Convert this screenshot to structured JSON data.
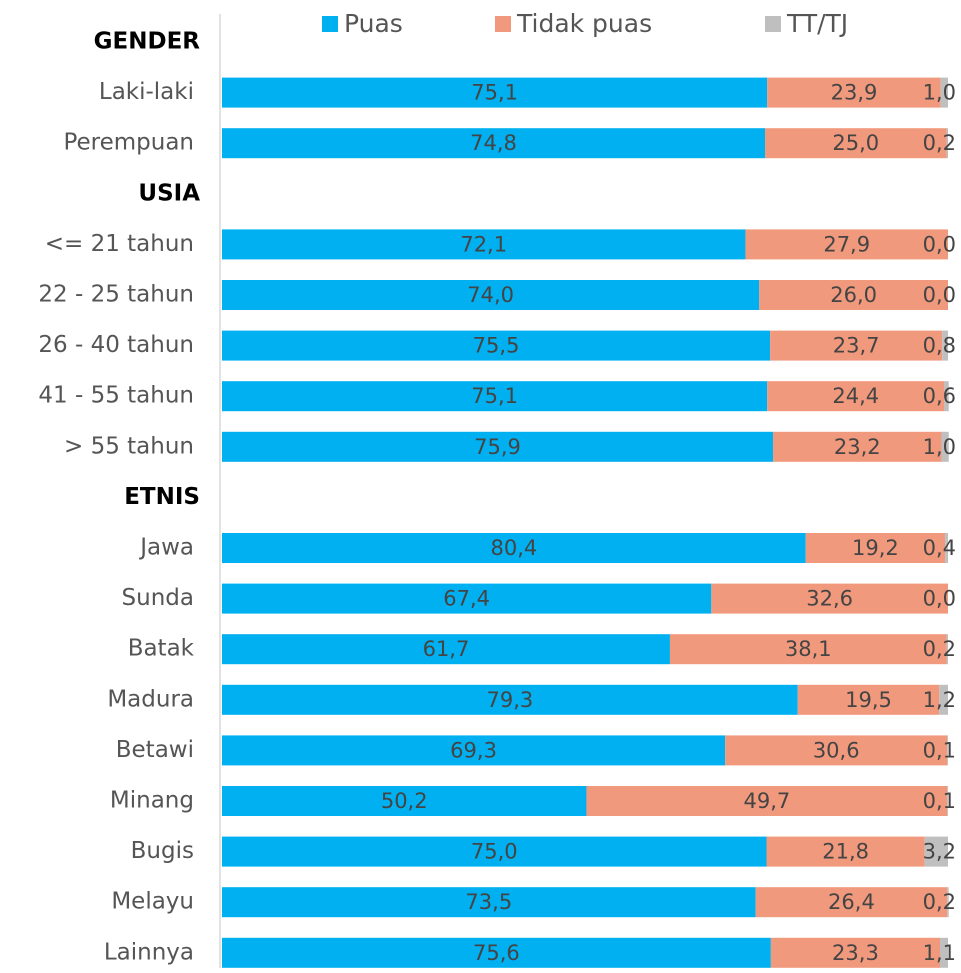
{
  "chart_data": {
    "type": "stacked-barh",
    "xlim": [
      0,
      100
    ],
    "categories": [
      "GENDER",
      "Laki-laki",
      "Perempuan",
      "USIA",
      "<= 21 tahun",
      "22 - 25 tahun",
      "26 - 40 tahun",
      "41 - 55 tahun",
      "> 55 tahun",
      "ETNIS",
      "Jawa",
      "Sunda",
      "Batak",
      "Madura",
      "Betawi",
      "Minang",
      "Bugis",
      "Melayu",
      "Lainnya"
    ],
    "series": [
      {
        "name": "Puas",
        "color": "#00b0f0",
        "values": [
          null,
          75.1,
          74.8,
          null,
          72.1,
          74.0,
          75.5,
          75.1,
          75.9,
          null,
          80.4,
          67.4,
          61.7,
          79.3,
          69.3,
          50.2,
          75.0,
          73.5,
          75.6
        ],
        "value_labels": [
          null,
          "75,1",
          "74,8",
          null,
          "72,1",
          "74,0",
          "75,5",
          "75,1",
          "75,9",
          null,
          "80,4",
          "67,4",
          "61,7",
          "79,3",
          "69,3",
          "50,2",
          "75,0",
          "73,5",
          "75,6"
        ]
      },
      {
        "name": "Tidak puas",
        "color": "#f0997d",
        "values": [
          null,
          23.9,
          25.0,
          null,
          27.9,
          26.0,
          23.7,
          24.4,
          23.2,
          null,
          19.2,
          32.6,
          38.1,
          19.5,
          30.6,
          49.7,
          21.8,
          26.4,
          23.3
        ],
        "value_labels": [
          null,
          "23,9",
          "25,0",
          null,
          "27,9",
          "26,0",
          "23,7",
          "24,4",
          "23,2",
          null,
          "19,2",
          "32,6",
          "38,1",
          "19,5",
          "30,6",
          "49,7",
          "21,8",
          "26,4",
          "23,3"
        ]
      },
      {
        "name": "TT/TJ",
        "color": "#bfbfbf",
        "values": [
          null,
          1.0,
          0.2,
          null,
          0.0,
          0.0,
          0.8,
          0.6,
          1.0,
          null,
          0.4,
          0.0,
          0.2,
          1.2,
          0.1,
          0.1,
          3.2,
          0.2,
          1.1
        ],
        "value_labels": [
          null,
          "1,0",
          "0,2",
          null,
          "0,0",
          "0,0",
          "0,8",
          "0,6",
          "1,0",
          null,
          "0,4",
          "0,0",
          "0,2",
          "1,2",
          "0,1",
          "0,1",
          "3,2",
          "0,2",
          "1,1"
        ]
      }
    ]
  }
}
